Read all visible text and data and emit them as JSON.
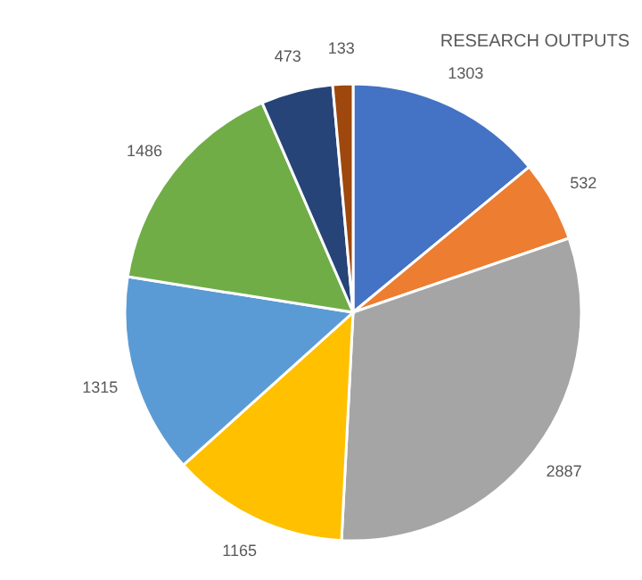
{
  "chart_data": {
    "type": "pie",
    "title": "RESEARCH OUTPUTS",
    "categories": [
      null,
      null,
      null,
      null,
      null,
      null,
      null,
      null
    ],
    "values": [
      1303,
      532,
      2887,
      1165,
      1315,
      1486,
      473,
      133
    ],
    "colors": [
      "#4472c4",
      "#ed7d31",
      "#a5a5a5",
      "#ffc000",
      "#5b9bd5",
      "#70ad47",
      "#264478",
      "#9e480e"
    ],
    "data_labels": true,
    "legend": false
  }
}
